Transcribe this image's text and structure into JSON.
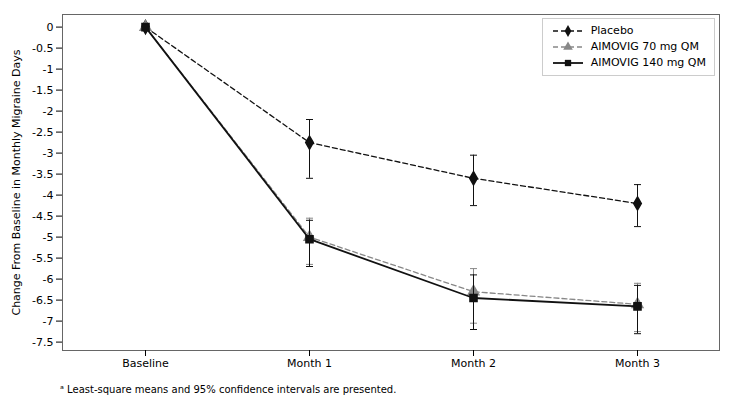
{
  "chart_data": {
    "type": "line",
    "categories": [
      "Baseline",
      "Month 1",
      "Month 2",
      "Month 3"
    ],
    "series": [
      {
        "name": "Placebo",
        "color": "#111111",
        "marker": "diamond",
        "line_style": "dashed",
        "values": [
          0,
          -2.75,
          -3.6,
          -4.2
        ],
        "error_low": [
          0.0,
          0.85,
          0.65,
          0.55
        ],
        "error_high": [
          0.0,
          0.55,
          0.55,
          0.45
        ]
      },
      {
        "name": "AIMOVIG 70 mg QM",
        "color": "#888888",
        "marker": "triangle",
        "line_style": "dashed",
        "values": [
          0,
          -5.0,
          -6.3,
          -6.6
        ],
        "error_low": [
          0.0,
          0.65,
          0.75,
          0.65
        ],
        "error_high": [
          0.0,
          0.45,
          0.55,
          0.5
        ]
      },
      {
        "name": "AIMOVIG 140 mg QM",
        "color": "#111111",
        "marker": "square",
        "line_style": "solid",
        "values": [
          0,
          -5.05,
          -6.45,
          -6.65
        ],
        "error_low": [
          0.0,
          0.65,
          0.75,
          0.65
        ],
        "error_high": [
          0.0,
          0.45,
          0.55,
          0.5
        ]
      }
    ],
    "ylabel": "Change From Baseline in Monthly Migraine Days",
    "ylim": [
      -7.7,
      0.3
    ],
    "yticks": [
      0,
      -0.5,
      -1,
      -1.5,
      -2,
      -2.5,
      -3,
      -3.5,
      -4,
      -4.5,
      -5,
      -5.5,
      -6,
      -6.5,
      -7,
      -7.5
    ],
    "grid": false,
    "legend": "upper right",
    "annotations": [
      "ᵃ Least-square means and 95% confidence intervals are presented."
    ]
  }
}
